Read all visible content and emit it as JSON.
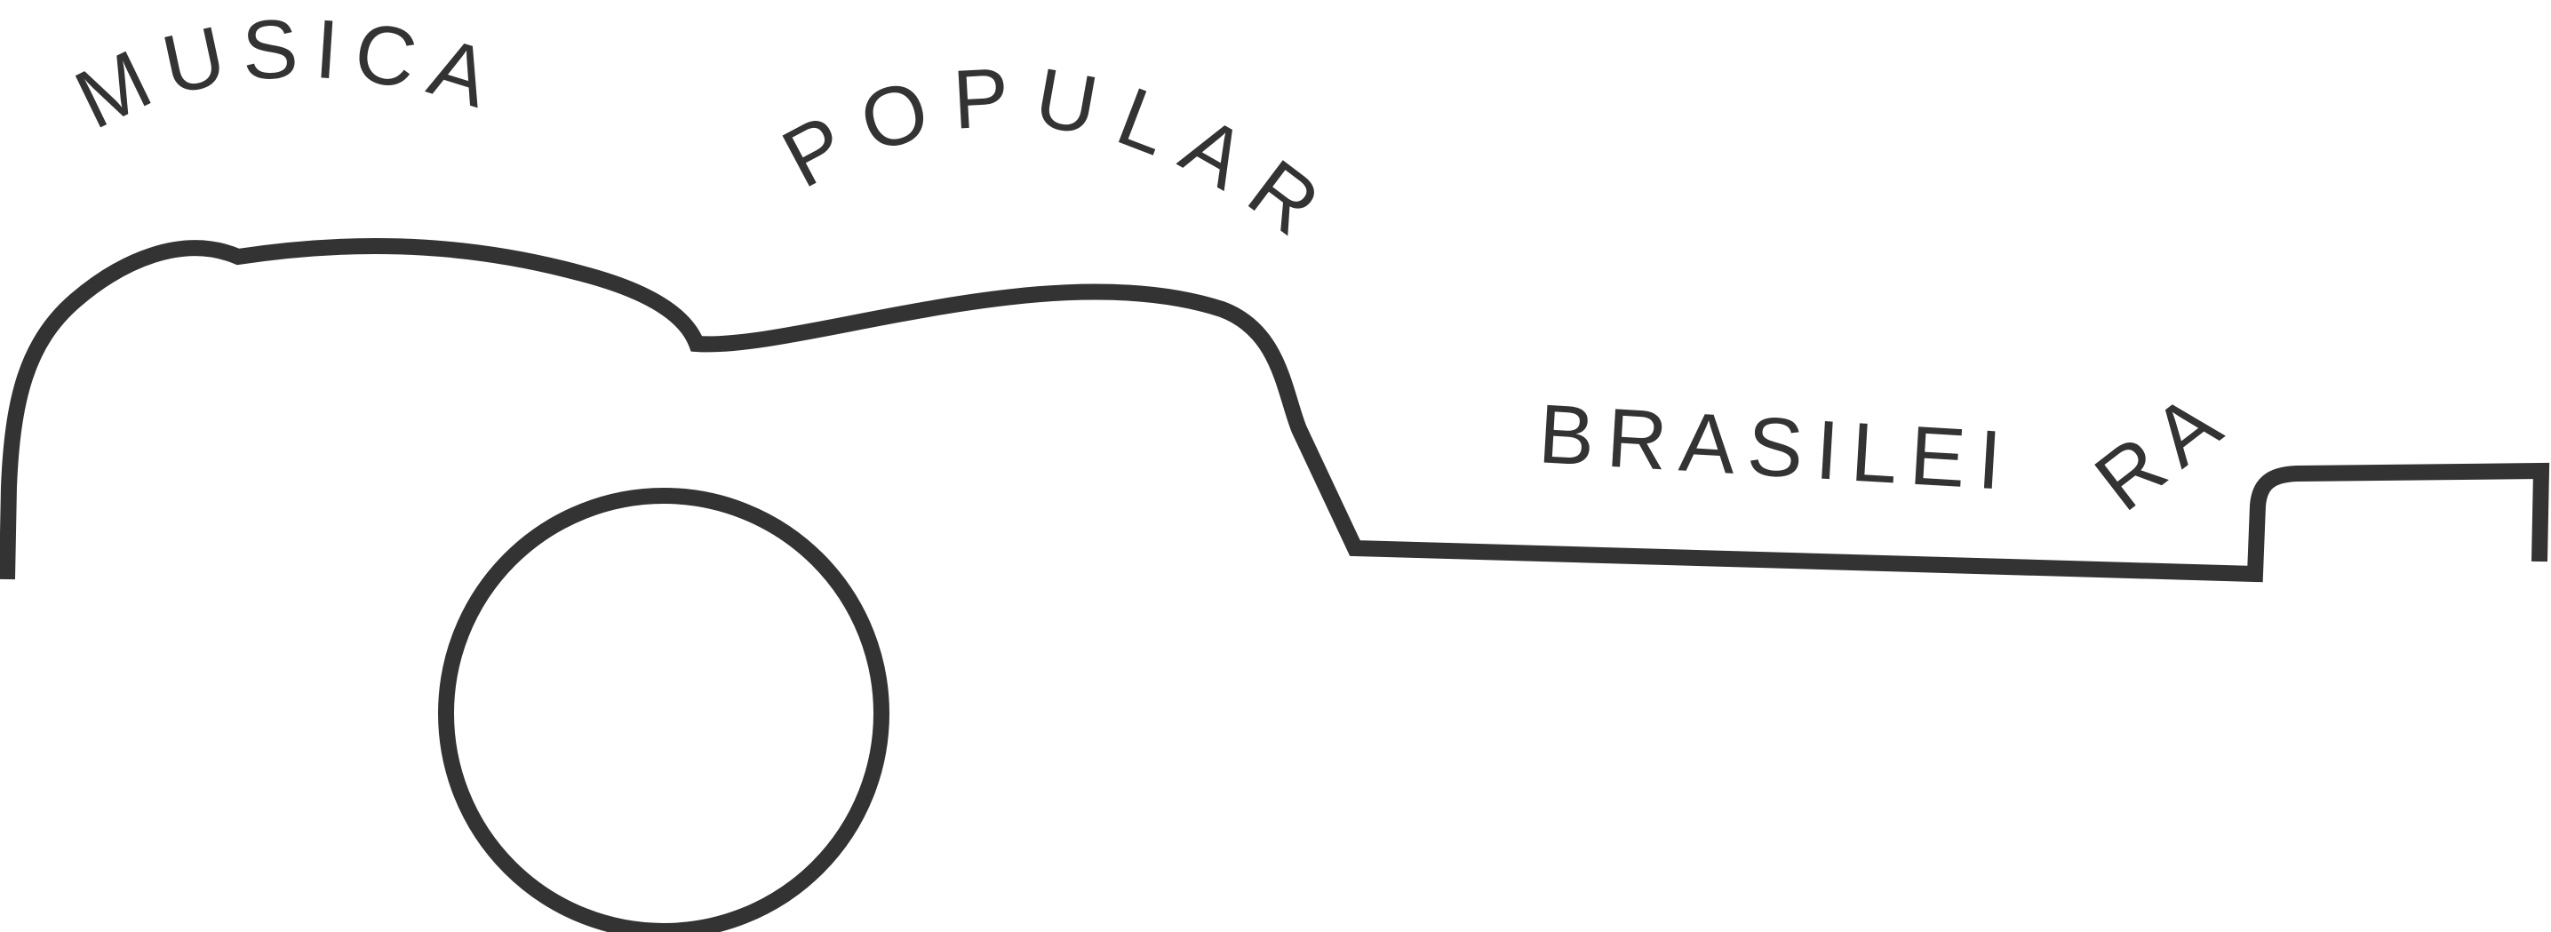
{
  "logo": {
    "line1": "MUSICA",
    "line2": "POPULAR",
    "line3": "BRASILEI",
    "line4": "RA",
    "ink_color": "#333333",
    "background_color": "#ffffff"
  }
}
